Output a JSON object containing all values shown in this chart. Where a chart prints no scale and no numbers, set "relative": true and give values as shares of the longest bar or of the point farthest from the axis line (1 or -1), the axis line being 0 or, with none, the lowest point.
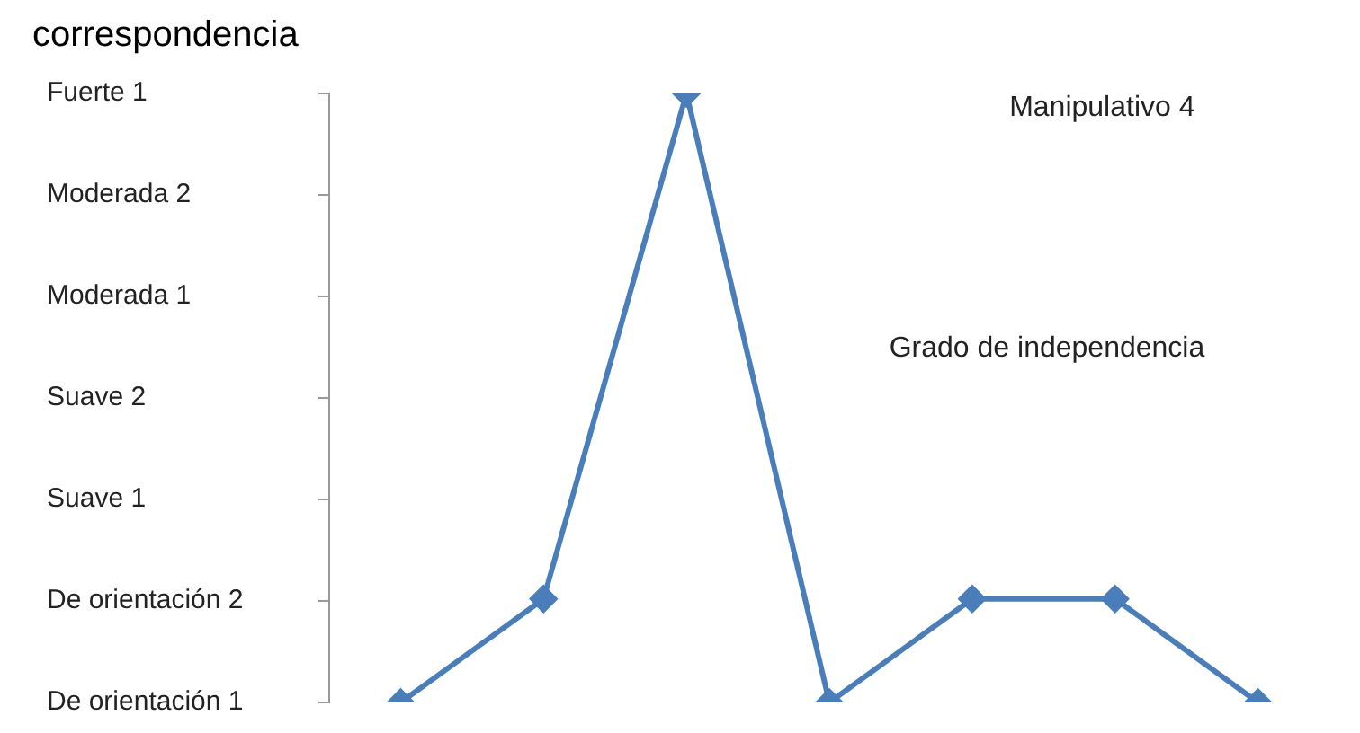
{
  "chart_data": {
    "type": "line",
    "title": "correspondencia",
    "relative": true,
    "categories": [
      null,
      null,
      null,
      null,
      null,
      null,
      null
    ],
    "series": [
      {
        "color": "#4a7ebb",
        "values": [
          0,
          0.17,
          1,
          0,
          0.17,
          0.17,
          0
        ]
      }
    ],
    "annotations": [
      "Fuerte 1",
      "Moderada 2",
      "Moderada 1",
      "Suave 2",
      "Suave 1",
      "De orientación 2",
      "De orientación 1",
      "Manipulativo 4",
      "Grado de independencia"
    ],
    "marker": "diamond",
    "line_style": "solid",
    "grid": false,
    "legend": false
  }
}
